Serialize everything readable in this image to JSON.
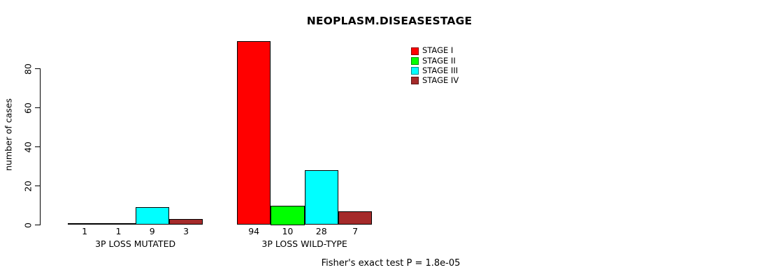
{
  "title": "NEOPLASM.DISEASESTAGE",
  "chart_data": {
    "type": "bar",
    "categories": [
      "3P LOSS MUTATED",
      "3P LOSS WILD-TYPE"
    ],
    "series": [
      {
        "name": "STAGE I",
        "color": "#FF0000",
        "values": [
          1,
          94
        ]
      },
      {
        "name": "STAGE II",
        "color": "#00FF00",
        "values": [
          1,
          10
        ]
      },
      {
        "name": "STAGE III",
        "color": "#00FFFF",
        "values": [
          9,
          28
        ]
      },
      {
        "name": "STAGE IV",
        "color": "#A52A2A",
        "values": [
          3,
          7
        ]
      }
    ],
    "ylabel": "number of cases",
    "xlabel": "",
    "ylim": [
      0,
      80
    ],
    "y_ticks": [
      0,
      20,
      40,
      60,
      80
    ],
    "bar_value_labels_shown": true,
    "grid": false,
    "legend_position": "top-right",
    "annotation": "Fisher's exact test P = 1.8e-05"
  }
}
